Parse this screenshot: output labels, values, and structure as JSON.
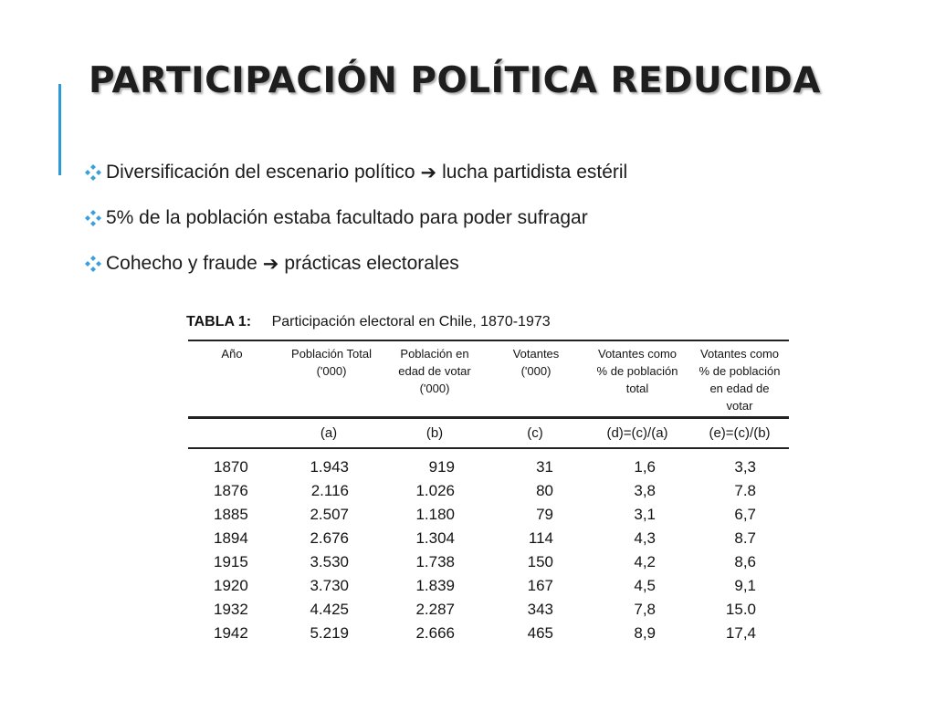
{
  "slide": {
    "title": "PARTICIPACIÓN POLÍTICA REDUCIDA",
    "accent_color": "#2c9ad6",
    "bullet_icon": "diamond-cluster-icon",
    "bullet_icon_color": "#3aa0d8",
    "bullets": [
      {
        "before": "Diversificación del escenario político",
        "arrow": "➔",
        "after": "lucha partidista estéril"
      },
      {
        "text": "5% de la población estaba facultado para poder sufragar"
      },
      {
        "before": "Cohecho y fraude",
        "arrow": "➔",
        "after": "prácticas electorales"
      }
    ]
  },
  "table": {
    "caption_label": "TABLA 1:",
    "caption_title": "Participación electoral en Chile, 1870-1973",
    "headers": [
      "Año",
      "Población Total\n('000)",
      "Población en\nedad de votar\n('000)",
      "Votantes\n('000)",
      "Votantes como\n% de población\ntotal",
      "Votantes como\n% de población\nen edad de\nvotar"
    ],
    "letters": [
      "",
      "(a)",
      "(b)",
      "(c)",
      "(d)=(c)/(a)",
      "(e)=(c)/(b)"
    ],
    "rows": [
      [
        "1870",
        "1.943",
        "919",
        "31",
        "1,6",
        "3,3"
      ],
      [
        "1876",
        "2.116",
        "1.026",
        "80",
        "3,8",
        "7.8"
      ],
      [
        "1885",
        "2.507",
        "1.180",
        "79",
        "3,1",
        "6,7"
      ],
      [
        "1894",
        "2.676",
        "1.304",
        "114",
        "4,3",
        "8.7"
      ],
      [
        "1915",
        "3.530",
        "1.738",
        "150",
        "4,2",
        "8,6"
      ],
      [
        "1920",
        "3.730",
        "1.839",
        "167",
        "4,5",
        "9,1"
      ],
      [
        "1932",
        "4.425",
        "2.287",
        "343",
        "7,8",
        "15.0"
      ],
      [
        "1942",
        "5.219",
        "2.666",
        "465",
        "8,9",
        "17,4"
      ]
    ]
  }
}
